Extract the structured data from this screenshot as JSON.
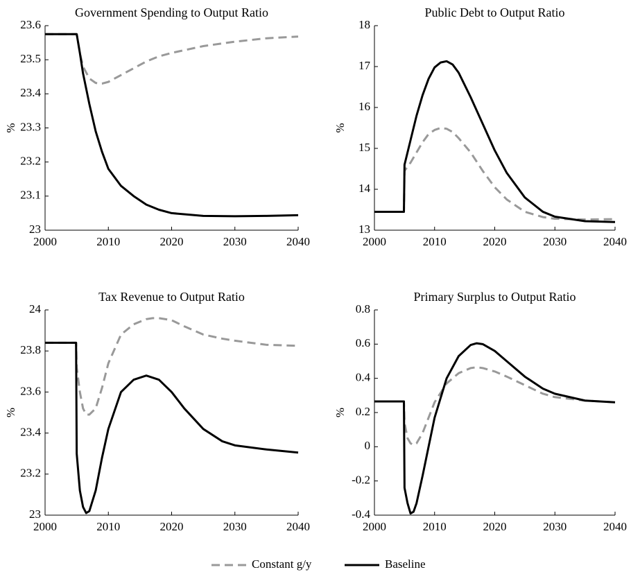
{
  "chart_data": [
    {
      "type": "line",
      "title": "Government Spending to Output Ratio",
      "y_label": "%",
      "x": [
        2000,
        2004.9,
        2005,
        2005.5,
        2006,
        2007,
        2008,
        2009,
        2010,
        2012,
        2014,
        2016,
        2018,
        2020,
        2025,
        2030,
        2035,
        2040
      ],
      "series": [
        {
          "name": "Constant g/y",
          "color": "#999999",
          "dashed": true,
          "values": [
            23.575,
            23.575,
            23.575,
            23.52,
            23.48,
            23.445,
            23.432,
            23.43,
            23.435,
            23.455,
            23.475,
            23.495,
            23.51,
            23.52,
            23.54,
            23.553,
            23.563,
            23.568
          ]
        },
        {
          "name": "Baseline",
          "color": "#000000",
          "dashed": false,
          "values": [
            23.575,
            23.575,
            23.575,
            23.52,
            23.46,
            23.37,
            23.29,
            23.23,
            23.18,
            23.13,
            23.1,
            23.075,
            23.06,
            23.05,
            23.042,
            23.041,
            23.042,
            23.044
          ]
        }
      ],
      "xlim": [
        2000,
        2040
      ],
      "xticks": [
        2000,
        2010,
        2020,
        2030,
        2040
      ],
      "ylim": [
        23,
        23.6
      ],
      "yticks": [
        23,
        23.1,
        23.2,
        23.3,
        23.4,
        23.5,
        23.6
      ]
    },
    {
      "type": "line",
      "title": "Public Debt to Output Ratio",
      "y_label": "%",
      "x": [
        2000,
        2004.9,
        2005,
        2006,
        2007,
        2008,
        2009,
        2010,
        2011,
        2012,
        2013,
        2014,
        2016,
        2018,
        2020,
        2022,
        2025,
        2028,
        2030,
        2035,
        2040
      ],
      "series": [
        {
          "name": "Constant g/y",
          "color": "#999999",
          "dashed": true,
          "values": [
            13.45,
            13.45,
            14.45,
            14.65,
            14.9,
            15.15,
            15.35,
            15.45,
            15.5,
            15.48,
            15.4,
            15.25,
            14.9,
            14.45,
            14.05,
            13.75,
            13.45,
            13.32,
            13.28,
            13.26,
            13.27
          ]
        },
        {
          "name": "Baseline",
          "color": "#000000",
          "dashed": false,
          "values": [
            13.45,
            13.45,
            14.6,
            15.2,
            15.8,
            16.3,
            16.7,
            16.98,
            17.1,
            17.13,
            17.05,
            16.85,
            16.25,
            15.6,
            14.95,
            14.4,
            13.8,
            13.45,
            13.33,
            13.22,
            13.2
          ]
        }
      ],
      "xlim": [
        2000,
        2040
      ],
      "xticks": [
        2000,
        2010,
        2020,
        2030,
        2040
      ],
      "ylim": [
        13,
        18
      ],
      "yticks": [
        13,
        14,
        15,
        16,
        17,
        18
      ]
    },
    {
      "type": "line",
      "title": "Tax Revenue to Output Ratio",
      "y_label": "%",
      "x": [
        2000,
        2004.9,
        2005,
        2005.5,
        2006,
        2006.5,
        2007,
        2008,
        2009,
        2010,
        2012,
        2014,
        2016,
        2017,
        2018,
        2020,
        2022,
        2025,
        2028,
        2030,
        2035,
        2040
      ],
      "series": [
        {
          "name": "Constant g/y",
          "color": "#999999",
          "dashed": true,
          "values": [
            23.84,
            23.84,
            23.72,
            23.6,
            23.52,
            23.49,
            23.49,
            23.52,
            23.62,
            23.74,
            23.88,
            23.93,
            23.955,
            23.96,
            23.96,
            23.95,
            23.92,
            23.88,
            23.86,
            23.85,
            23.83,
            23.825
          ]
        },
        {
          "name": "Baseline",
          "color": "#000000",
          "dashed": false,
          "values": [
            23.84,
            23.84,
            23.3,
            23.12,
            23.04,
            23.01,
            23.02,
            23.12,
            23.28,
            23.42,
            23.6,
            23.66,
            23.68,
            23.67,
            23.66,
            23.6,
            23.52,
            23.42,
            23.36,
            23.34,
            23.32,
            23.305
          ]
        }
      ],
      "xlim": [
        2000,
        2040
      ],
      "xticks": [
        2000,
        2010,
        2020,
        2030,
        2040
      ],
      "ylim": [
        23,
        24
      ],
      "yticks": [
        23,
        23.2,
        23.4,
        23.6,
        23.8,
        24
      ]
    },
    {
      "type": "line",
      "title": "Primary Surplus to Output Ratio",
      "y_label": "%",
      "x": [
        2000,
        2004.9,
        2005,
        2005.5,
        2006,
        2006.5,
        2007,
        2008,
        2009,
        2010,
        2012,
        2014,
        2016,
        2017,
        2018,
        2020,
        2022,
        2025,
        2028,
        2030,
        2035,
        2040
      ],
      "series": [
        {
          "name": "Constant g/y",
          "color": "#999999",
          "dashed": true,
          "values": [
            0.265,
            0.265,
            0.14,
            0.05,
            0.02,
            0.01,
            0.02,
            0.08,
            0.17,
            0.26,
            0.37,
            0.43,
            0.46,
            0.465,
            0.46,
            0.44,
            0.41,
            0.36,
            0.31,
            0.29,
            0.27,
            0.26
          ]
        },
        {
          "name": "Baseline",
          "color": "#000000",
          "dashed": false,
          "values": [
            0.265,
            0.265,
            -0.24,
            -0.33,
            -0.39,
            -0.38,
            -0.33,
            -0.17,
            0.0,
            0.17,
            0.4,
            0.53,
            0.595,
            0.605,
            0.6,
            0.56,
            0.5,
            0.41,
            0.34,
            0.31,
            0.27,
            0.26
          ]
        }
      ],
      "xlim": [
        2000,
        2040
      ],
      "xticks": [
        2000,
        2010,
        2020,
        2030,
        2040
      ],
      "ylim": [
        -0.4,
        0.8
      ],
      "yticks": [
        -0.4,
        -0.2,
        0,
        0.2,
        0.4,
        0.6,
        0.8
      ]
    }
  ]
}
